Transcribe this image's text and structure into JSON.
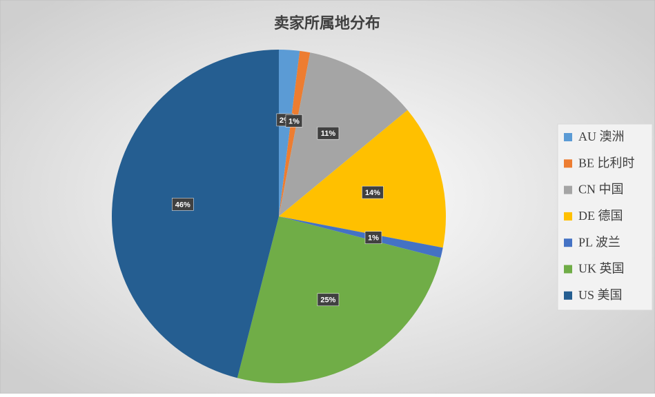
{
  "chart_data": {
    "type": "pie",
    "title": "卖家所属地分布",
    "categories": [
      "AU 澳洲",
      "BE 比利时",
      "CN 中国",
      "DE 德国",
      "PL 波兰",
      "UK 英国",
      "US 美国"
    ],
    "values": [
      2,
      1,
      11,
      14,
      1,
      25,
      46
    ],
    "value_labels": [
      "2%",
      "1%",
      "11%",
      "14%",
      "1%",
      "25%",
      "46%"
    ],
    "colors": [
      "#5b9bd5",
      "#ed7d31",
      "#a5a5a5",
      "#ffc000",
      "#4472c4",
      "#70ad47",
      "#255e91"
    ],
    "legend": "right"
  }
}
